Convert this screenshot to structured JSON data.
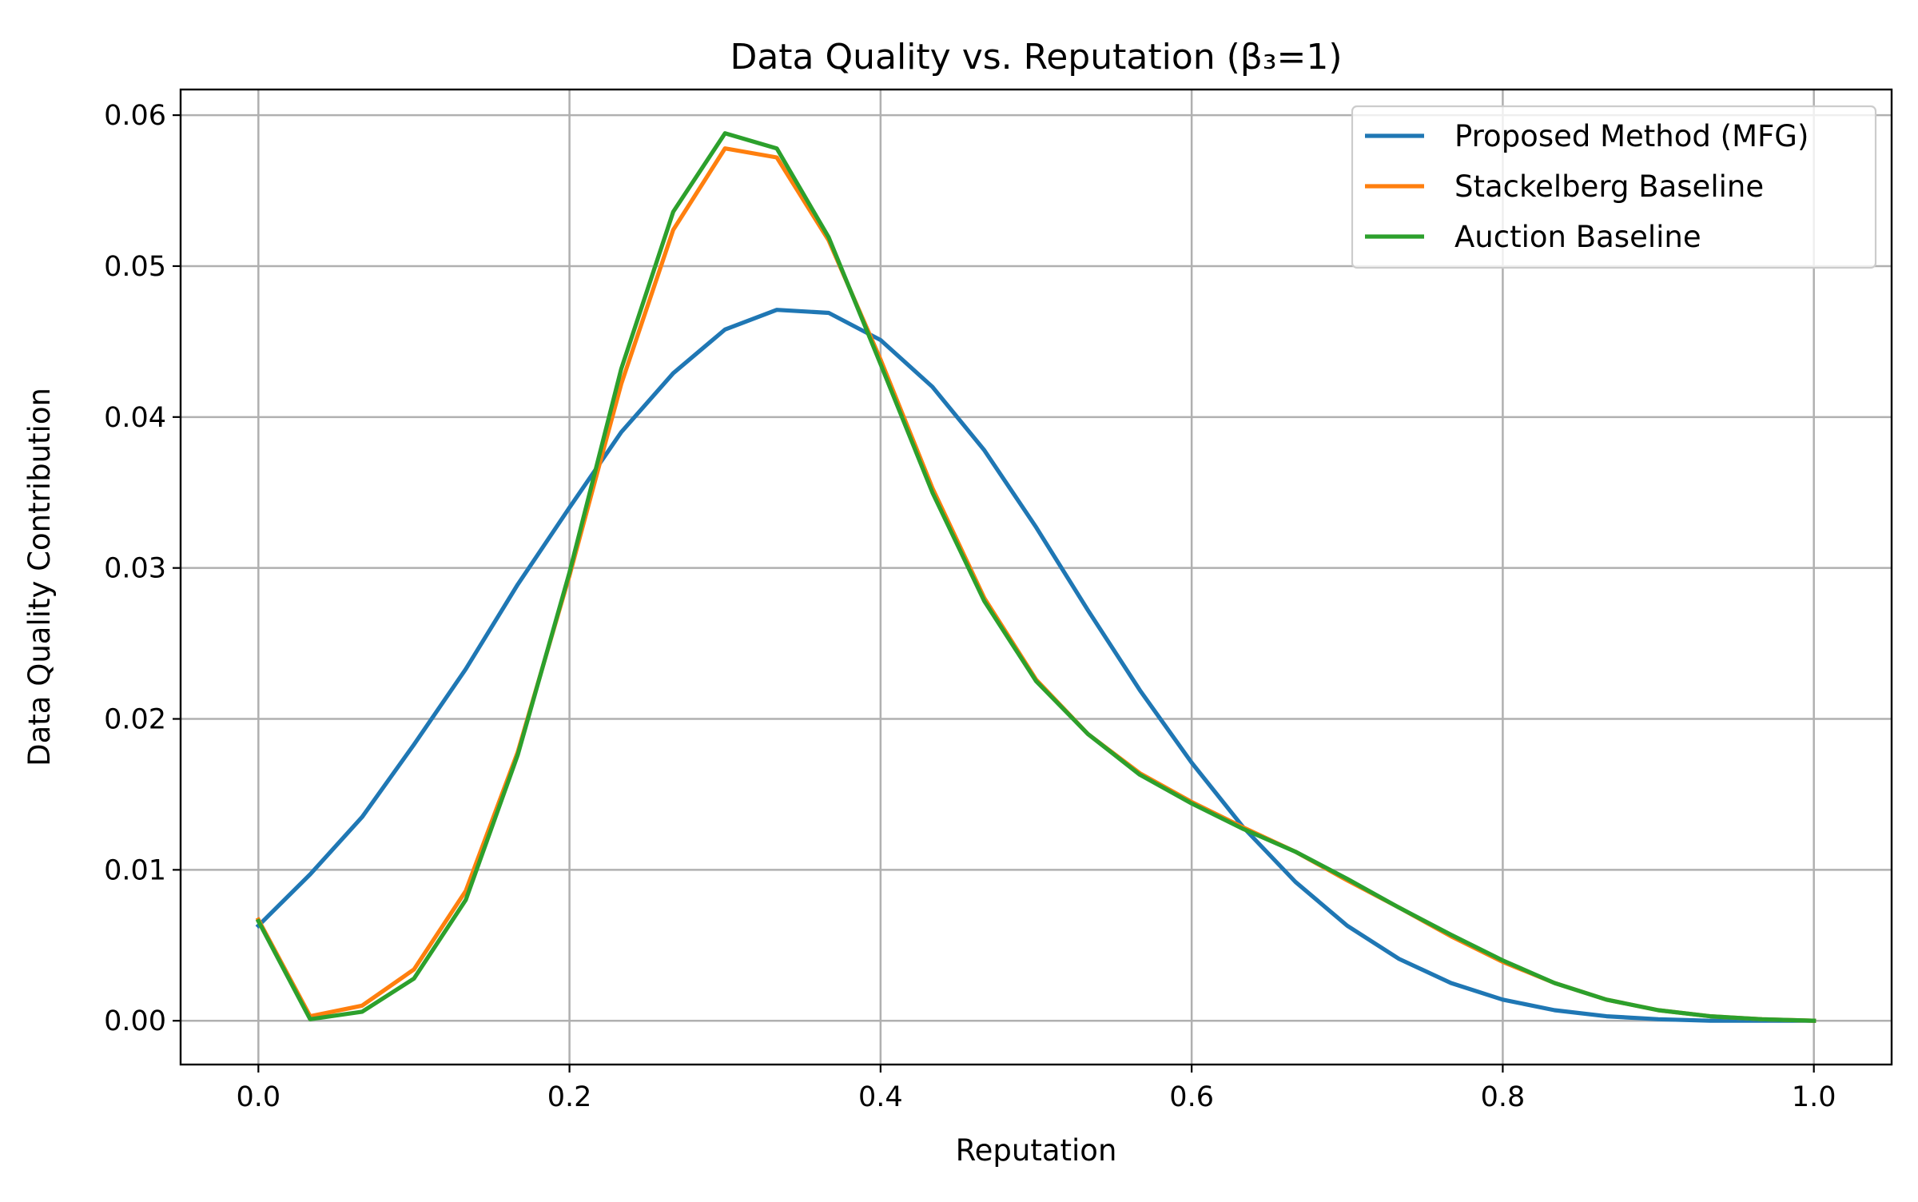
{
  "chart_data": {
    "type": "line",
    "title": "Data Quality vs. Reputation (β₃=1)",
    "xlabel": "Reputation",
    "ylabel": "Data Quality Contribution",
    "xlim": [
      -0.05,
      1.05
    ],
    "ylim": [
      -0.0029,
      0.0617
    ],
    "grid": true,
    "legend_position": "top-right",
    "xticks": [
      0.0,
      0.2,
      0.4,
      0.6,
      0.8,
      1.0
    ],
    "xtick_labels": [
      "0.0",
      "0.2",
      "0.4",
      "0.6",
      "0.8",
      "1.0"
    ],
    "yticks": [
      0.0,
      0.01,
      0.02,
      0.03,
      0.04,
      0.05,
      0.06
    ],
    "ytick_labels": [
      "0.00",
      "0.01",
      "0.02",
      "0.03",
      "0.04",
      "0.05",
      "0.06"
    ],
    "x": [
      0.0,
      0.0333,
      0.0667,
      0.1,
      0.1333,
      0.1667,
      0.2,
      0.2333,
      0.2667,
      0.3,
      0.3333,
      0.3667,
      0.4,
      0.4333,
      0.4667,
      0.5,
      0.5333,
      0.5667,
      0.6,
      0.6333,
      0.6667,
      0.7,
      0.7333,
      0.7667,
      0.8,
      0.8333,
      0.8667,
      0.9,
      0.9333,
      0.9667,
      1.0
    ],
    "series": [
      {
        "name": "Proposed Method (MFG)",
        "color": "#1f77b4",
        "values": [
          0.0063,
          0.0097,
          0.0135,
          0.0183,
          0.0233,
          0.0289,
          0.034,
          0.039,
          0.0429,
          0.0458,
          0.0471,
          0.0469,
          0.0451,
          0.042,
          0.0378,
          0.0327,
          0.0272,
          0.0219,
          0.0171,
          0.0128,
          0.0092,
          0.0063,
          0.0041,
          0.0025,
          0.0014,
          0.0007,
          0.0003,
          0.0001,
          0.0,
          0.0,
          0.0
        ]
      },
      {
        "name": "Stackelberg Baseline",
        "color": "#ff7f0e",
        "values": [
          0.0067,
          0.0003,
          0.001,
          0.0034,
          0.0086,
          0.0178,
          0.0295,
          0.0422,
          0.0524,
          0.0578,
          0.0572,
          0.0517,
          0.0438,
          0.0353,
          0.028,
          0.0226,
          0.019,
          0.0164,
          0.0145,
          0.0128,
          0.0112,
          0.0093,
          0.0075,
          0.0056,
          0.0039,
          0.0025,
          0.0014,
          0.0007,
          0.0003,
          0.0001,
          0.0
        ]
      },
      {
        "name": "Auction Baseline",
        "color": "#2ca02c",
        "values": [
          0.0066,
          0.0001,
          0.0006,
          0.0028,
          0.008,
          0.0176,
          0.0297,
          0.0432,
          0.0536,
          0.0588,
          0.0578,
          0.0519,
          0.0435,
          0.035,
          0.0278,
          0.0225,
          0.019,
          0.0163,
          0.0144,
          0.0127,
          0.0112,
          0.0094,
          0.0075,
          0.0057,
          0.004,
          0.0025,
          0.0014,
          0.0007,
          0.0003,
          0.0001,
          0.0
        ]
      }
    ]
  }
}
